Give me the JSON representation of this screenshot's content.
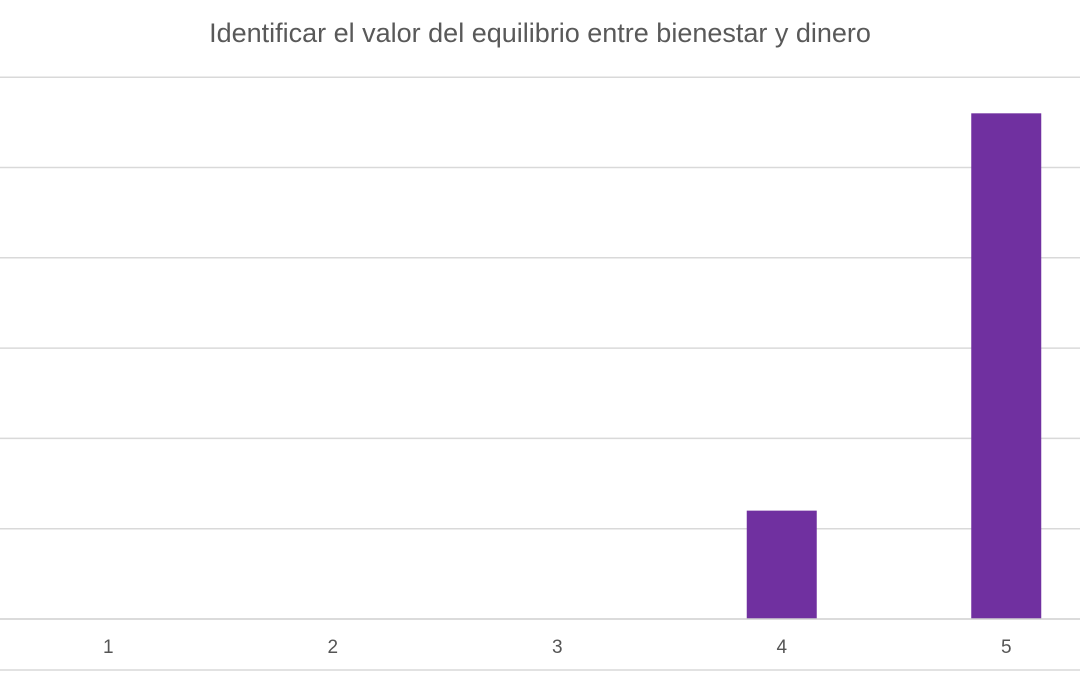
{
  "chart_data": {
    "type": "bar",
    "title": "Identificar el valor del equilibrio entre bienestar y dinero",
    "xlabel": "",
    "ylabel": "",
    "categories": [
      "1",
      "2",
      "3",
      "4",
      "5"
    ],
    "values": [
      0,
      0,
      0,
      1.2,
      5.6
    ],
    "ylim": [
      0,
      6
    ],
    "grid": true,
    "bar_color": "#7030a0",
    "grid_color": "#d9d9d9",
    "axis_color": "#cfcfcf"
  }
}
